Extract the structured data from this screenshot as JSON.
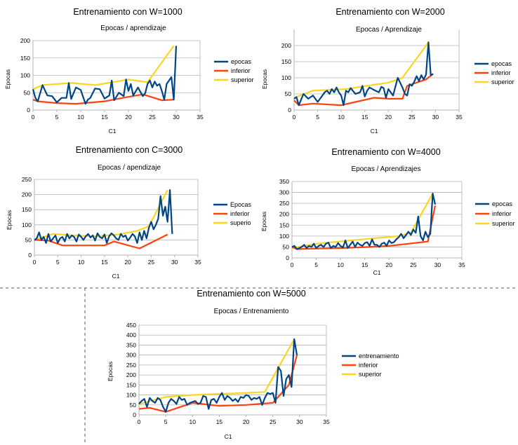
{
  "colors": {
    "series1": "#004586",
    "series2": "#ff420e",
    "series3": "#ffd320",
    "grid": "#b3b3b3",
    "axis": "#b3b3b3",
    "text": "#000000",
    "separator": "#555555"
  },
  "chart_data": [
    {
      "type": "line",
      "title": "Entrenamiento con W=1000",
      "subtitle": "Epocas / aprendizaje",
      "xlabel": "C1",
      "ylabel": "Epocas",
      "xlim": [
        0,
        35
      ],
      "ylim": [
        0,
        200
      ],
      "xticks": [
        0,
        5,
        10,
        15,
        20,
        25,
        30,
        35
      ],
      "yticks": [
        0,
        50,
        100,
        150,
        200
      ],
      "grid": true,
      "legend": "right",
      "series": [
        {
          "name": "epocas",
          "color": "series1",
          "x": [
            0,
            0.5,
            1,
            2,
            3,
            4,
            5,
            6,
            7,
            7.5,
            8,
            9,
            10,
            11,
            11.5,
            12,
            13,
            14,
            15,
            16,
            16.5,
            17,
            18,
            19,
            19.5,
            20,
            20.5,
            21,
            22,
            23,
            23.5,
            24,
            24.5,
            25,
            25.5,
            26,
            26.5,
            27,
            27.5,
            28,
            29,
            29.5,
            30
          ],
          "y": [
            60,
            35,
            25,
            72,
            42,
            40,
            22,
            35,
            35,
            78,
            32,
            65,
            58,
            18,
            30,
            35,
            62,
            60,
            33,
            42,
            85,
            28,
            50,
            40,
            88,
            55,
            75,
            42,
            65,
            40,
            48,
            75,
            85,
            65,
            82,
            70,
            75,
            55,
            30,
            75,
            95,
            30,
            185
          ]
        },
        {
          "name": "inferior",
          "color": "series2",
          "x": [
            0,
            1,
            5,
            9,
            15,
            20,
            23,
            27,
            29.5
          ],
          "y": [
            30,
            25,
            20,
            18,
            25,
            38,
            45,
            28,
            30
          ]
        },
        {
          "name": "superior",
          "color": "series3",
          "x": [
            0,
            2,
            8,
            13,
            20,
            24,
            29.5
          ],
          "y": [
            60,
            72,
            78,
            72,
            88,
            80,
            185
          ]
        }
      ]
    },
    {
      "type": "line",
      "title": "Entrenamiento con W=2000",
      "subtitle": "Epocas / Aprendizaje",
      "xlabel": "C1",
      "ylabel": "Epocas",
      "xlim": [
        0,
        35
      ],
      "ylim": [
        0,
        250
      ],
      "xticks": [
        0,
        5,
        10,
        15,
        20,
        25,
        30,
        35
      ],
      "yticks": [
        0,
        50,
        100,
        150,
        200
      ],
      "grid": true,
      "legend": "right",
      "series": [
        {
          "name": "epocas",
          "color": "series1",
          "x": [
            0,
            0.5,
            1,
            2,
            3,
            4,
            5,
            6,
            6.5,
            7,
            7.5,
            8,
            8.5,
            9,
            9.5,
            10,
            10.5,
            11,
            11.5,
            12,
            13,
            14,
            14.5,
            15,
            15.5,
            16,
            17,
            18,
            18.5,
            19,
            19.5,
            20,
            21,
            22,
            23,
            23.5,
            24,
            24.5,
            25,
            25.5,
            26,
            26.5,
            27,
            27.5,
            28,
            28.5,
            29,
            29.5
          ],
          "y": [
            35,
            40,
            15,
            50,
            35,
            45,
            25,
            45,
            55,
            60,
            50,
            65,
            55,
            70,
            55,
            45,
            15,
            60,
            55,
            68,
            50,
            55,
            75,
            42,
            60,
            70,
            62,
            55,
            72,
            68,
            38,
            65,
            45,
            100,
            70,
            50,
            45,
            80,
            75,
            88,
            105,
            90,
            108,
            95,
            110,
            210,
            108,
            112
          ]
        },
        {
          "name": "inferior",
          "color": "series2",
          "x": [
            0,
            1,
            4,
            10,
            17,
            20,
            23,
            24,
            28,
            29.5
          ],
          "y": [
            30,
            15,
            20,
            15,
            38,
            35,
            35,
            75,
            95,
            112
          ]
        },
        {
          "name": "superior",
          "color": "series3",
          "x": [
            0,
            4,
            11,
            20,
            23,
            28.5
          ],
          "y": [
            38,
            60,
            65,
            85,
            100,
            210
          ]
        }
      ]
    },
    {
      "type": "line",
      "title": "Entrenamiento con C=3000",
      "subtitle": "Epocas / apendizaje",
      "xlabel": "C1",
      "ylabel": "Epocas",
      "xlim": [
        0,
        35
      ],
      "ylim": [
        0,
        250
      ],
      "xticks": [
        0,
        5,
        10,
        15,
        20,
        25,
        30,
        35
      ],
      "yticks": [
        0,
        50,
        100,
        150,
        200,
        250
      ],
      "grid": true,
      "legend": "right",
      "series": [
        {
          "name": "Epocas",
          "color": "series1",
          "x": [
            0,
            0.5,
            1,
            1.5,
            2,
            2.5,
            3,
            3.5,
            4,
            4.5,
            5,
            5.5,
            6,
            6.5,
            7,
            7.5,
            8,
            8.5,
            9,
            9.5,
            10,
            10.5,
            11,
            11.5,
            12,
            12.5,
            13,
            13.5,
            14,
            14.5,
            15,
            15.5,
            16,
            16.5,
            17,
            17.5,
            18,
            18.5,
            19,
            19.5,
            20,
            20.5,
            21,
            21.5,
            22,
            22.5,
            23,
            23.5,
            24,
            24.5,
            25,
            25.5,
            26,
            26.5,
            27,
            27.5,
            28,
            28.5,
            29,
            29.5
          ],
          "y": [
            50,
            55,
            75,
            50,
            60,
            40,
            70,
            45,
            55,
            65,
            40,
            55,
            60,
            45,
            70,
            55,
            65,
            60,
            45,
            68,
            60,
            50,
            62,
            70,
            58,
            65,
            48,
            72,
            60,
            55,
            68,
            40,
            62,
            72,
            65,
            55,
            50,
            70,
            60,
            65,
            48,
            58,
            70,
            62,
            40,
            75,
            50,
            80,
            55,
            90,
            110,
            85,
            100,
            120,
            195,
            130,
            160,
            110,
            215,
            70
          ]
        },
        {
          "name": "inferior",
          "color": "series2",
          "x": [
            0,
            3,
            6,
            10,
            15,
            17,
            22.5,
            28.5
          ],
          "y": [
            50,
            48,
            32,
            32,
            32,
            45,
            22,
            68
          ]
        },
        {
          "name": "superio",
          "color": "series3",
          "x": [
            0,
            4,
            8,
            13,
            18,
            22,
            24.5,
            28.5
          ],
          "y": [
            50,
            70,
            65,
            62,
            68,
            80,
            95,
            215
          ]
        }
      ]
    },
    {
      "type": "line",
      "title": "Entrenamiento con W=4000",
      "subtitle": "Epocas / Aprendizajes",
      "xlabel": "C1",
      "ylabel": "Epocas",
      "xlim": [
        0,
        35
      ],
      "ylim": [
        0,
        350
      ],
      "xticks": [
        0,
        5,
        10,
        15,
        20,
        25,
        30,
        35
      ],
      "yticks": [
        0,
        50,
        100,
        150,
        200,
        250,
        300,
        350
      ],
      "grid": true,
      "legend": "right",
      "series": [
        {
          "name": "epocas",
          "color": "series1",
          "x": [
            0,
            0.5,
            1,
            1.5,
            2,
            2.5,
            3,
            3.5,
            4,
            4.5,
            5,
            5.5,
            6,
            6.5,
            7,
            7.5,
            8,
            8.5,
            9,
            9.5,
            10,
            10.5,
            11,
            11.5,
            12,
            12.5,
            13,
            13.5,
            14,
            14.5,
            15,
            15.5,
            16,
            16.5,
            17,
            17.5,
            18,
            18.5,
            19,
            19.5,
            20,
            20.5,
            21,
            21.5,
            22,
            22.5,
            23,
            23.5,
            24,
            24.5,
            25,
            25.5,
            26,
            26.5,
            27,
            27.5,
            28,
            28.5,
            29,
            29.5
          ],
          "y": [
            50,
            55,
            40,
            45,
            50,
            60,
            45,
            55,
            50,
            65,
            45,
            55,
            60,
            50,
            65,
            70,
            45,
            55,
            50,
            68,
            55,
            48,
            80,
            45,
            60,
            75,
            50,
            70,
            60,
            55,
            68,
            72,
            55,
            85,
            60,
            60,
            50,
            65,
            70,
            55,
            80,
            68,
            72,
            85,
            95,
            110,
            90,
            105,
            120,
            105,
            130,
            115,
            190,
            100,
            80,
            120,
            95,
            110,
            295,
            245
          ]
        },
        {
          "name": "inferior",
          "color": "series2",
          "x": [
            0,
            1,
            4,
            10,
            16,
            20,
            24,
            28,
            29.5
          ],
          "y": [
            50,
            40,
            42,
            45,
            50,
            55,
            65,
            75,
            240
          ]
        },
        {
          "name": "superior",
          "color": "series3",
          "x": [
            0,
            5,
            12,
            22,
            24.5,
            29
          ],
          "y": [
            45,
            65,
            80,
            100,
            115,
            295
          ]
        }
      ]
    },
    {
      "type": "line",
      "title": "Entrenamiento con W=5000",
      "subtitle": "Epocas / Entrenamiento",
      "xlabel": "C1",
      "ylabel": "Epocas",
      "xlim": [
        0,
        35
      ],
      "ylim": [
        0,
        450
      ],
      "xticks": [
        0,
        5,
        10,
        15,
        20,
        25,
        30,
        35
      ],
      "yticks": [
        0,
        50,
        100,
        150,
        200,
        250,
        300,
        350,
        400,
        450
      ],
      "grid": true,
      "legend": "right",
      "series": [
        {
          "name": "entrenamiento",
          "color": "series1",
          "x": [
            0,
            0.5,
            1,
            1.5,
            2,
            2.5,
            3,
            3.5,
            4,
            4.5,
            5,
            5.5,
            6,
            6.5,
            7,
            7.5,
            8,
            8.5,
            9,
            9.5,
            10,
            10.5,
            11,
            11.5,
            12,
            12.5,
            13,
            13.5,
            14,
            14.5,
            15,
            15.5,
            16,
            16.5,
            17,
            17.5,
            18,
            18.5,
            19,
            19.5,
            20,
            20.5,
            21,
            21.5,
            22,
            22.5,
            23,
            23.5,
            24,
            24.5,
            25,
            25.5,
            26,
            26.5,
            27,
            27.5,
            28,
            28.5,
            29,
            29.5
          ],
          "y": [
            55,
            70,
            80,
            40,
            85,
            70,
            60,
            85,
            75,
            40,
            15,
            60,
            80,
            70,
            55,
            90,
            75,
            80,
            50,
            60,
            65,
            70,
            55,
            60,
            95,
            90,
            30,
            75,
            80,
            60,
            90,
            110,
            75,
            95,
            85,
            70,
            80,
            65,
            90,
            85,
            100,
            95,
            75,
            85,
            80,
            90,
            50,
            85,
            110,
            105,
            110,
            60,
            240,
            220,
            95,
            180,
            200,
            140,
            380,
            300
          ]
        },
        {
          "name": "inferior",
          "color": "series2",
          "x": [
            0,
            2,
            5,
            10,
            15,
            20,
            25,
            28,
            29.5
          ],
          "y": [
            30,
            35,
            15,
            60,
            45,
            50,
            60,
            150,
            300
          ]
        },
        {
          "name": "superior",
          "color": "series3",
          "x": [
            0,
            5,
            10,
            15,
            20,
            23.5,
            29
          ],
          "y": [
            55,
            90,
            100,
            105,
            110,
            115,
            380
          ]
        }
      ]
    }
  ]
}
